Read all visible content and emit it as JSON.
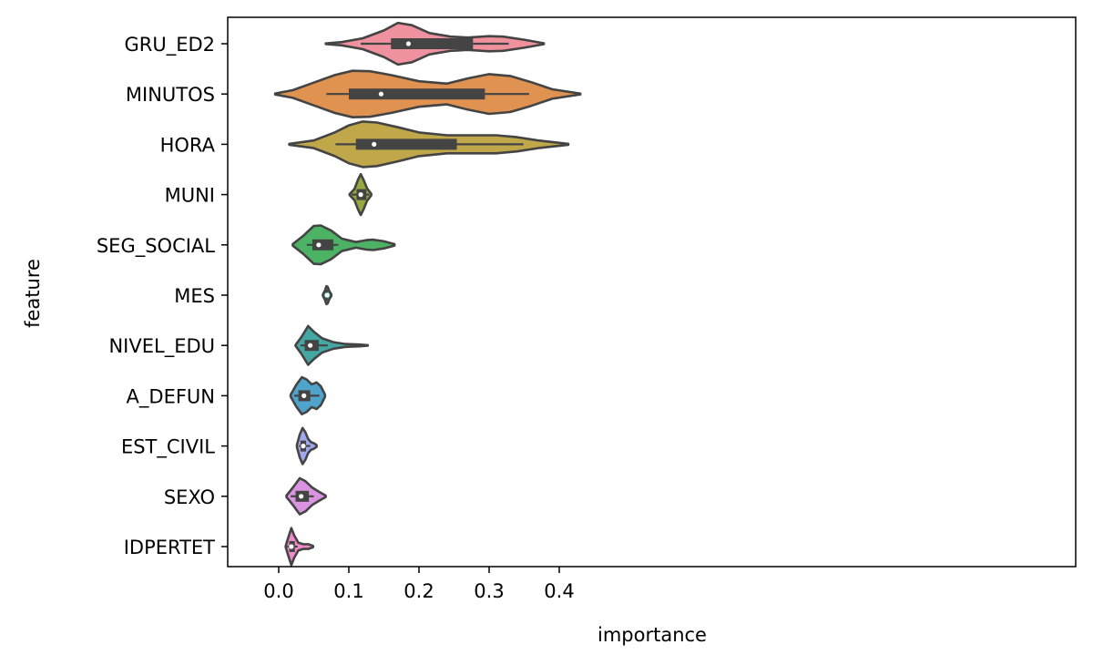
{
  "chart_data": {
    "type": "violin",
    "orientation": "horizontal",
    "title": "",
    "xlabel": "importance",
    "ylabel": "feature",
    "xlim": [
      -0.03,
      0.455
    ],
    "xticks": [
      0.0,
      0.1,
      0.2,
      0.3,
      0.4
    ],
    "xtick_labels": [
      "0.0",
      "0.1",
      "0.2",
      "0.3",
      "0.4"
    ],
    "grid": false,
    "legend": "none",
    "categories": [
      "GRU_ED2",
      "MINUTOS",
      "HORA",
      "MUNI",
      "SEG_SOCIAL",
      "MES",
      "NIVEL_EDU",
      "A_DEFUN",
      "EST_CIVIL",
      "SEXO",
      "IDPERTET"
    ],
    "series": [
      {
        "feature": "GRU_ED2",
        "color": "#f0919f",
        "density": [
          [
            0.067,
            0.01
          ],
          [
            0.09,
            0.07
          ],
          [
            0.12,
            0.23
          ],
          [
            0.15,
            0.56
          ],
          [
            0.17,
            0.88
          ],
          [
            0.19,
            0.78
          ],
          [
            0.215,
            0.45
          ],
          [
            0.245,
            0.3
          ],
          [
            0.27,
            0.26
          ],
          [
            0.3,
            0.32
          ],
          [
            0.32,
            0.3
          ],
          [
            0.35,
            0.17
          ],
          [
            0.378,
            0.02
          ]
        ],
        "whisker": [
          0.117,
          0.328
        ],
        "q1": 0.16,
        "median": 0.185,
        "q3": 0.277
      },
      {
        "feature": "MINUTOS",
        "color": "#e09350",
        "density": [
          [
            -0.005,
            0.02
          ],
          [
            0.02,
            0.16
          ],
          [
            0.05,
            0.48
          ],
          [
            0.08,
            0.8
          ],
          [
            0.105,
            0.98
          ],
          [
            0.13,
            0.96
          ],
          [
            0.16,
            0.8
          ],
          [
            0.2,
            0.54
          ],
          [
            0.24,
            0.44
          ],
          [
            0.27,
            0.66
          ],
          [
            0.3,
            0.84
          ],
          [
            0.33,
            0.76
          ],
          [
            0.36,
            0.5
          ],
          [
            0.39,
            0.2
          ],
          [
            0.43,
            0.02
          ]
        ],
        "whisker": [
          0.068,
          0.357
        ],
        "q1": 0.1,
        "median": 0.146,
        "q3": 0.294
      },
      {
        "feature": "HORA",
        "color": "#c0a84a",
        "density": [
          [
            0.015,
            0.02
          ],
          [
            0.05,
            0.16
          ],
          [
            0.08,
            0.5
          ],
          [
            0.1,
            0.8
          ],
          [
            0.12,
            0.96
          ],
          [
            0.14,
            0.92
          ],
          [
            0.17,
            0.72
          ],
          [
            0.2,
            0.5
          ],
          [
            0.24,
            0.38
          ],
          [
            0.28,
            0.38
          ],
          [
            0.31,
            0.38
          ],
          [
            0.34,
            0.3
          ],
          [
            0.37,
            0.16
          ],
          [
            0.413,
            0.02
          ]
        ],
        "whisker": [
          0.081,
          0.349
        ],
        "q1": 0.11,
        "median": 0.136,
        "q3": 0.254
      },
      {
        "feature": "MUNI",
        "color": "#97a83e",
        "density": [
          [
            0.101,
            0.02
          ],
          [
            0.108,
            0.24
          ],
          [
            0.113,
            0.62
          ],
          [
            0.117,
            0.86
          ],
          [
            0.121,
            0.62
          ],
          [
            0.126,
            0.26
          ],
          [
            0.132,
            0.03
          ]
        ],
        "whisker": [
          0.104,
          0.129
        ],
        "q1": 0.111,
        "median": 0.117,
        "q3": 0.125
      },
      {
        "feature": "SEG_SOCIAL",
        "color": "#4cb264",
        "density": [
          [
            0.02,
            0.03
          ],
          [
            0.035,
            0.38
          ],
          [
            0.05,
            0.8
          ],
          [
            0.06,
            0.82
          ],
          [
            0.075,
            0.6
          ],
          [
            0.09,
            0.26
          ],
          [
            0.11,
            0.12
          ],
          [
            0.125,
            0.2
          ],
          [
            0.135,
            0.22
          ],
          [
            0.15,
            0.15
          ],
          [
            0.165,
            0.03
          ]
        ],
        "whisker": [
          0.04,
          0.085
        ],
        "q1": 0.048,
        "median": 0.057,
        "q3": 0.078
      },
      {
        "feature": "MES",
        "color": "#3fa68b",
        "density": [
          [
            0.063,
            0.03
          ],
          [
            0.066,
            0.2
          ],
          [
            0.068,
            0.38
          ],
          [
            0.07,
            0.34
          ],
          [
            0.072,
            0.18
          ],
          [
            0.075,
            0.03
          ]
        ],
        "whisker": [
          0.066,
          0.071
        ],
        "q1": 0.067,
        "median": 0.069,
        "q3": 0.07
      },
      {
        "feature": "NIVEL_EDU",
        "color": "#45a7a3",
        "density": [
          [
            0.024,
            0.02
          ],
          [
            0.032,
            0.34
          ],
          [
            0.042,
            0.82
          ],
          [
            0.05,
            0.58
          ],
          [
            0.062,
            0.3
          ],
          [
            0.078,
            0.14
          ],
          [
            0.095,
            0.06
          ],
          [
            0.115,
            0.04
          ],
          [
            0.127,
            0.01
          ]
        ],
        "whisker": [
          0.031,
          0.07
        ],
        "q1": 0.037,
        "median": 0.045,
        "q3": 0.057
      },
      {
        "feature": "A_DEFUN",
        "color": "#4fa4cc",
        "density": [
          [
            0.017,
            0.04
          ],
          [
            0.025,
            0.46
          ],
          [
            0.033,
            0.78
          ],
          [
            0.04,
            0.68
          ],
          [
            0.047,
            0.48
          ],
          [
            0.054,
            0.56
          ],
          [
            0.06,
            0.4
          ],
          [
            0.066,
            0.05
          ]
        ],
        "whisker": [
          0.022,
          0.058
        ],
        "q1": 0.028,
        "median": 0.036,
        "q3": 0.045
      },
      {
        "feature": "EST_CIVIL",
        "color": "#a2a8ee",
        "density": [
          [
            0.026,
            0.05
          ],
          [
            0.03,
            0.48
          ],
          [
            0.034,
            0.76
          ],
          [
            0.038,
            0.58
          ],
          [
            0.042,
            0.3
          ],
          [
            0.046,
            0.16
          ],
          [
            0.05,
            0.12
          ],
          [
            0.054,
            0.04
          ]
        ],
        "whisker": [
          0.029,
          0.045
        ],
        "q1": 0.031,
        "median": 0.035,
        "q3": 0.039
      },
      {
        "feature": "SEXO",
        "color": "#d993e0",
        "density": [
          [
            0.011,
            0.03
          ],
          [
            0.02,
            0.36
          ],
          [
            0.03,
            0.76
          ],
          [
            0.038,
            0.64
          ],
          [
            0.048,
            0.36
          ],
          [
            0.058,
            0.18
          ],
          [
            0.067,
            0.03
          ]
        ],
        "whisker": [
          0.017,
          0.05
        ],
        "q1": 0.024,
        "median": 0.032,
        "q3": 0.043
      },
      {
        "feature": "IDPERTET",
        "color": "#ee8bc8",
        "density": [
          [
            0.01,
            0.03
          ],
          [
            0.014,
            0.42
          ],
          [
            0.018,
            0.78
          ],
          [
            0.022,
            0.48
          ],
          [
            0.028,
            0.16
          ],
          [
            0.035,
            0.1
          ],
          [
            0.042,
            0.1
          ],
          [
            0.049,
            0.03
          ]
        ],
        "whisker": [
          0.012,
          0.027
        ],
        "q1": 0.015,
        "median": 0.018,
        "q3": 0.023
      }
    ]
  }
}
